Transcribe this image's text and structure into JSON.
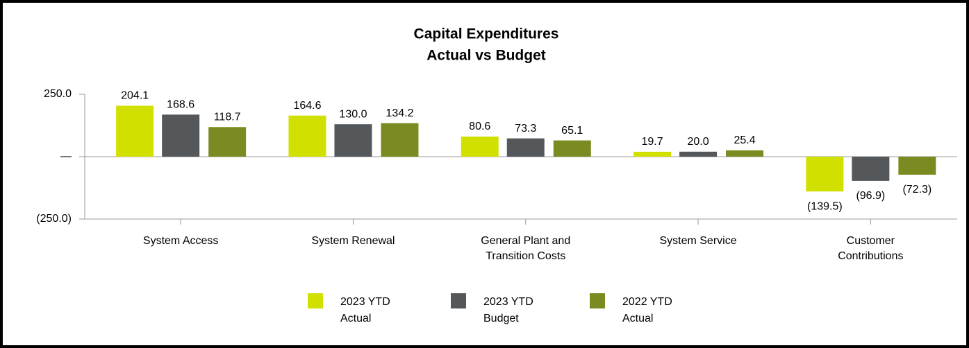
{
  "chart_data": {
    "type": "bar",
    "title": "Capital Expenditures",
    "subtitle": "Actual vs Budget",
    "categories": [
      "System Access",
      "System Renewal",
      "General Plant and Transition Costs",
      "System Service",
      "Customer Contributions"
    ],
    "series": [
      {
        "name": "2023 YTD Actual",
        "color": "#d2e000",
        "values": [
          204.1,
          164.6,
          80.6,
          19.7,
          -139.5
        ],
        "value_labels": [
          "204.1",
          "164.6",
          "80.6",
          "19.7",
          "(139.5)"
        ]
      },
      {
        "name": "2023 YTD Budget",
        "color": "#55585b",
        "values": [
          168.6,
          130.0,
          73.3,
          20.0,
          -96.9
        ],
        "value_labels": [
          "168.6",
          "130.0",
          "73.3",
          "20.0",
          "(96.9)"
        ]
      },
      {
        "name": "2022 YTD Actual",
        "color": "#7b8b22",
        "values": [
          118.7,
          134.2,
          65.1,
          25.4,
          -72.3
        ],
        "value_labels": [
          "118.7",
          "134.2",
          "65.1",
          "25.4",
          "(72.3)"
        ]
      }
    ],
    "ylim": [
      -250,
      250
    ],
    "yticks": [
      {
        "value": -250,
        "label": "(250.0)"
      },
      {
        "value": 0,
        "label": "—"
      },
      {
        "value": 250,
        "label": "250.0"
      }
    ],
    "legend": "bottom"
  }
}
